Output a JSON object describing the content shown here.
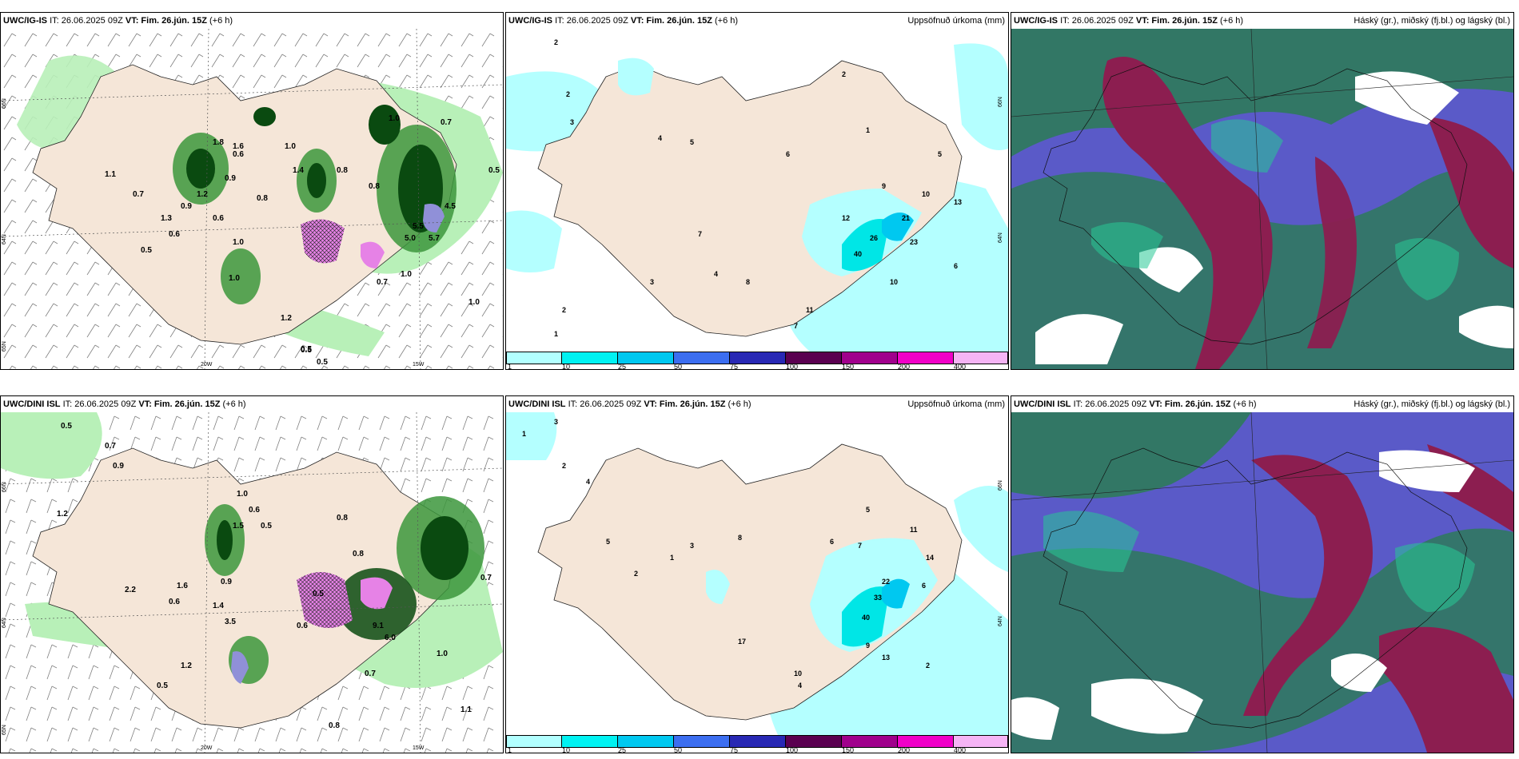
{
  "panels": {
    "top_left": {
      "model": "UWC/IG-IS",
      "it": "IT: 26.06.2025 09Z",
      "vt_label": "VT:",
      "vt_value": "Fim. 26.jún. 15Z",
      "offset": "(+6 h)",
      "right_title": ""
    },
    "top_mid": {
      "model": "UWC/IG-IS",
      "it": "IT: 26.06.2025 09Z",
      "vt_label": "VT:",
      "vt_value": "Fim. 26.jún. 15Z",
      "offset": "(+6 h)",
      "right_title": "Uppsöfnuð úrkoma (mm)"
    },
    "top_right": {
      "model": "UWC/IG-IS",
      "it": "IT: 26.06.2025 09Z",
      "vt_label": "VT:",
      "vt_value": "Fim. 26.jún. 15Z",
      "offset": "(+6 h)",
      "right_title": "Háský (gr.), miðský (fj.bl.) og lágský (bl.)"
    },
    "bottom_left": {
      "model": "UWC/DINI ISL",
      "it": "IT: 26.06.2025 09Z",
      "vt_label": "VT:",
      "vt_value": "Fim. 26.jún. 15Z",
      "offset": "(+6 h)",
      "right_title": ""
    },
    "bottom_mid": {
      "model": "UWC/DINI ISL",
      "it": "IT: 26.06.2025 09Z",
      "vt_label": "VT:",
      "vt_value": "Fim. 26.jún. 15Z",
      "offset": "(+6 h)",
      "right_title": "Uppsöfnuð úrkoma (mm)"
    },
    "bottom_right": {
      "model": "UWC/DINI ISL",
      "it": "IT: 26.06.2025 09Z",
      "vt_label": "VT:",
      "vt_value": "Fim. 26.jún. 15Z",
      "offset": "(+6 h)",
      "right_title": "Háský (gr.), miðský (fj.bl.) og lágský (bl.)"
    }
  },
  "axes": {
    "lat_66": "66N",
    "lat_64": "64N",
    "lat_65": "65N",
    "lon_20": "20W",
    "lon_15": "15W"
  },
  "colorbar": {
    "levels": [
      "1",
      "10",
      "25",
      "50",
      "75",
      "100",
      "150",
      "200",
      "400"
    ],
    "colors": [
      "#b2ffff",
      "#00f2f2",
      "#00c8f0",
      "#3c6ef0",
      "#2828b4",
      "#5a0050",
      "#a0008c",
      "#f000c8",
      "#f5b4f5"
    ]
  },
  "palette": {
    "land": "#f5e6d8",
    "sea": "#ffffff",
    "precip_light": "#b8f0b8",
    "precip_mid": "#3c963c",
    "precip_dark": "#0a4a10",
    "conv_pink": "#e682e6",
    "precip_cyan_light": "#b4ffff",
    "precip_cyan": "#00e6e6",
    "cloud_high": "#2e7a5a",
    "cloud_mid": "#8c1e50",
    "cloud_low": "#5a5ac8"
  },
  "values": {
    "top_left": [
      "0.7",
      "1.1",
      "0.5",
      "1.0",
      "0.6",
      "0.8",
      "0.5",
      "0.9",
      "1.2",
      "0.6",
      "1.0",
      "1.4",
      "0.8",
      "0.7",
      "1.0",
      "0.5",
      "1.6",
      "0.7",
      "0.5",
      "1.0",
      "0.9",
      "1.8",
      "0.6",
      "1.3",
      "0.8",
      "1.0",
      "5.5",
      "4.5",
      "5.7",
      "5.0",
      "0.5",
      "1.0",
      "1.2"
    ],
    "top_mid": [
      "2",
      "1",
      "3",
      "5",
      "4",
      "2",
      "1",
      "7",
      "6",
      "9",
      "10",
      "13",
      "21",
      "23",
      "26",
      "40",
      "12",
      "11",
      "7",
      "4",
      "8",
      "3",
      "2",
      "1",
      "6",
      "10",
      "5"
    ],
    "bottom_left": [
      "0.5",
      "0.7",
      "0.9",
      "1.0",
      "0.6",
      "0.5",
      "1.2",
      "0.8",
      "0.6",
      "0.7",
      "1.4",
      "3.5",
      "1.5",
      "0.9",
      "0.8",
      "0.5",
      "6.0",
      "9.1",
      "1.0",
      "0.7",
      "0.6",
      "0.8",
      "1.1",
      "1.2",
      "0.5",
      "2.2",
      "1.6"
    ],
    "bottom_mid": [
      "3",
      "1",
      "2",
      "5",
      "4",
      "17",
      "6",
      "3",
      "1",
      "2",
      "8",
      "10",
      "14",
      "22",
      "33",
      "40",
      "9",
      "13",
      "4",
      "2",
      "11",
      "7",
      "6",
      "5"
    ]
  }
}
